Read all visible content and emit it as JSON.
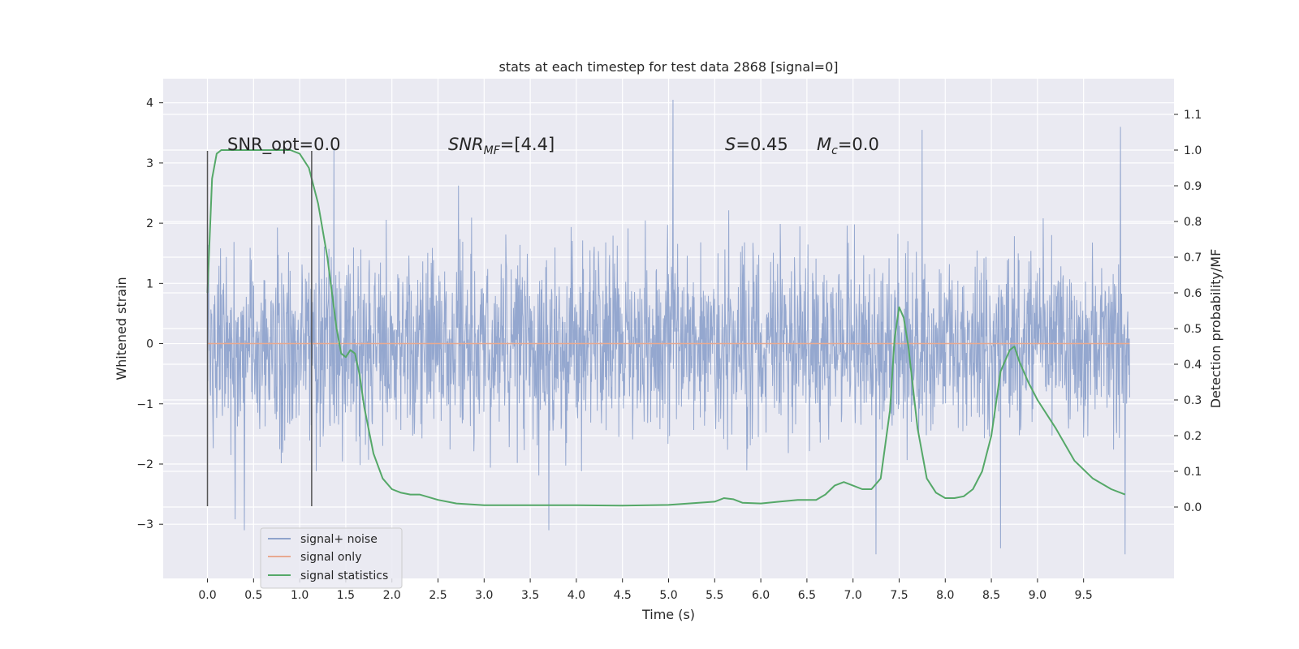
{
  "chart_data": {
    "type": "line",
    "title": "stats at each timestep for test data 2868 [signal=0]",
    "xlabel": "Time (s)",
    "ylabel_left": "Whitened strain",
    "ylabel_right": "Detection probability/MF",
    "xlim": [
      -0.48,
      10.48
    ],
    "ylim_left": [
      -3.9,
      4.4
    ],
    "ylim_right": [
      -0.2,
      1.2
    ],
    "x_ticks": [
      "0.0",
      "0.5",
      "1.0",
      "1.5",
      "2.0",
      "2.5",
      "3.0",
      "3.5",
      "4.0",
      "4.5",
      "5.0",
      "5.5",
      "6.0",
      "6.5",
      "7.0",
      "7.5",
      "8.0",
      "8.5",
      "9.0",
      "9.5"
    ],
    "y_ticks_left": [
      "4",
      "3",
      "2",
      "1",
      "0",
      "−1",
      "−2",
      "−3"
    ],
    "y_ticks_right": [
      "1.1",
      "1.0",
      "0.9",
      "0.8",
      "0.7",
      "0.6",
      "0.5",
      "0.4",
      "0.3",
      "0.2",
      "0.1",
      "0.0"
    ],
    "grid": true,
    "legend_position": "lower-left",
    "annotations": {
      "snr_opt": "SNR_opt=0.0",
      "snr_mf_prefix": "SNR",
      "snr_mf_sub": "MF",
      "snr_mf_value": "=[4.4]",
      "s_prefix": "S",
      "s_value": "=0.45",
      "mc_prefix": "M",
      "mc_sub": "c",
      "mc_value": "=0.0"
    },
    "vertical_markers": [
      0.0,
      1.13
    ],
    "series": [
      {
        "name": "signal+ noise",
        "color": "#8fa3cc",
        "axis": "left",
        "x_range": [
          0.0,
          10.0
        ],
        "envelope": [
          -3.5,
          4.05
        ],
        "spikes": [
          [
            5.05,
            4.05
          ],
          [
            7.75,
            3.55
          ],
          [
            9.9,
            3.6
          ],
          [
            1.37,
            3.25
          ],
          [
            7.25,
            -3.5
          ],
          [
            9.95,
            -3.5
          ],
          [
            8.6,
            -3.4
          ],
          [
            3.7,
            -3.1
          ],
          [
            0.4,
            -3.1
          ]
        ]
      },
      {
        "name": "signal only",
        "color": "#e8a990",
        "axis": "left",
        "x": [
          0.0,
          10.0
        ],
        "y": [
          0.0,
          0.0
        ]
      },
      {
        "name": "signal statistics",
        "color": "#55a868",
        "axis": "right",
        "x": [
          0.0,
          0.05,
          0.1,
          0.15,
          0.2,
          0.3,
          0.5,
          0.7,
          0.9,
          1.0,
          1.1,
          1.2,
          1.3,
          1.4,
          1.45,
          1.5,
          1.55,
          1.6,
          1.65,
          1.7,
          1.8,
          1.9,
          2.0,
          2.1,
          2.2,
          2.3,
          2.5,
          2.7,
          3.0,
          3.5,
          4.0,
          4.5,
          5.0,
          5.5,
          5.6,
          5.7,
          5.8,
          6.0,
          6.2,
          6.4,
          6.6,
          6.7,
          6.8,
          6.9,
          7.0,
          7.1,
          7.2,
          7.3,
          7.4,
          7.45,
          7.5,
          7.55,
          7.6,
          7.7,
          7.8,
          7.9,
          8.0,
          8.1,
          8.2,
          8.3,
          8.4,
          8.5,
          8.6,
          8.7,
          8.75,
          8.8,
          8.9,
          9.0,
          9.2,
          9.4,
          9.6,
          9.8,
          9.95
        ],
        "y": [
          0.6,
          0.92,
          0.99,
          1.0,
          1.0,
          1.0,
          1.0,
          1.0,
          1.0,
          0.99,
          0.95,
          0.85,
          0.7,
          0.5,
          0.43,
          0.42,
          0.44,
          0.43,
          0.37,
          0.28,
          0.15,
          0.08,
          0.05,
          0.04,
          0.035,
          0.035,
          0.02,
          0.01,
          0.005,
          0.005,
          0.005,
          0.004,
          0.006,
          0.015,
          0.025,
          0.022,
          0.012,
          0.01,
          0.015,
          0.02,
          0.02,
          0.035,
          0.06,
          0.07,
          0.06,
          0.05,
          0.05,
          0.08,
          0.27,
          0.47,
          0.56,
          0.53,
          0.45,
          0.22,
          0.08,
          0.04,
          0.025,
          0.025,
          0.03,
          0.05,
          0.1,
          0.2,
          0.38,
          0.44,
          0.45,
          0.41,
          0.35,
          0.3,
          0.22,
          0.13,
          0.08,
          0.05,
          0.035
        ]
      }
    ]
  }
}
